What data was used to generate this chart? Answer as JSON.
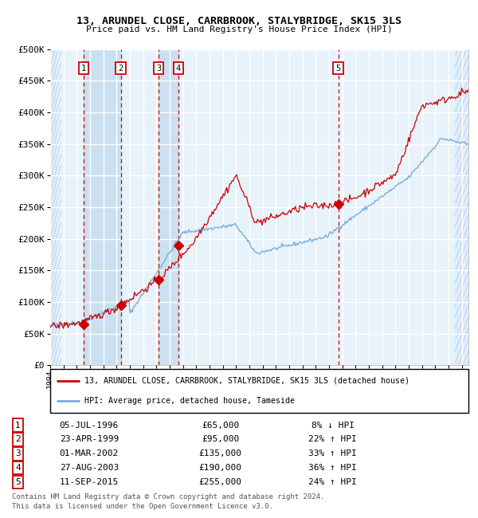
{
  "title": "13, ARUNDEL CLOSE, CARRBROOK, STALYBRIDGE, SK15 3LS",
  "subtitle": "Price paid vs. HM Land Registry's House Price Index (HPI)",
  "ylim": [
    0,
    500000
  ],
  "yticks": [
    0,
    50000,
    100000,
    150000,
    200000,
    250000,
    300000,
    350000,
    400000,
    450000,
    500000
  ],
  "ytick_labels": [
    "£0",
    "£50K",
    "£100K",
    "£150K",
    "£200K",
    "£250K",
    "£300K",
    "£350K",
    "£400K",
    "£450K",
    "£500K"
  ],
  "xlim_start": 1994.0,
  "xlim_end": 2025.5,
  "transactions": [
    {
      "num": 1,
      "date_str": "05-JUL-1996",
      "year": 1996.51,
      "price": 65000,
      "pct": "8%",
      "dir": "↓"
    },
    {
      "num": 2,
      "date_str": "23-APR-1999",
      "year": 1999.31,
      "price": 95000,
      "pct": "22%",
      "dir": "↑"
    },
    {
      "num": 3,
      "date_str": "01-MAR-2002",
      "year": 2002.16,
      "price": 135000,
      "pct": "33%",
      "dir": "↑"
    },
    {
      "num": 4,
      "date_str": "27-AUG-2003",
      "year": 2003.65,
      "price": 190000,
      "pct": "36%",
      "dir": "↑"
    },
    {
      "num": 5,
      "date_str": "11-SEP-2015",
      "year": 2015.69,
      "price": 255000,
      "pct": "24%",
      "dir": "↑"
    }
  ],
  "legend_line1": "13, ARUNDEL CLOSE, CARRBROOK, STALYBRIDGE, SK15 3LS (detached house)",
  "legend_line2": "HPI: Average price, detached house, Tameside",
  "footer1": "Contains HM Land Registry data © Crown copyright and database right 2024.",
  "footer2": "This data is licensed under the Open Government Licence v3.0.",
  "red_color": "#cc0000",
  "blue_color": "#7aaed6",
  "bg_main_color": "#ddeeff",
  "bg_inner_color": "#e8f2fb",
  "grid_color": "#ffffff"
}
